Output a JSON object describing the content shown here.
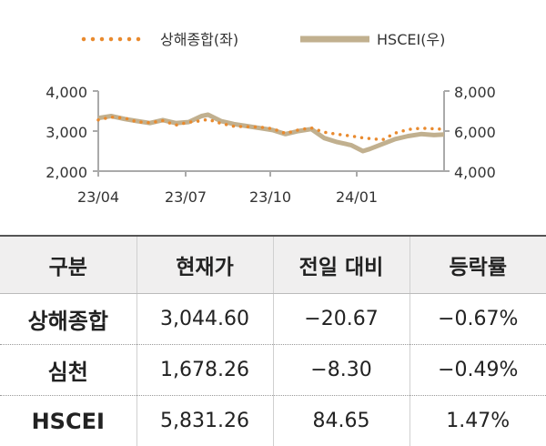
{
  "chart_data": {
    "type": "line",
    "title": "",
    "legend_position": "top",
    "x_ticks": [
      "23/04",
      "23/07",
      "23/10",
      "24/01"
    ],
    "left_axis": {
      "ticks": [
        "4,000",
        "3,000",
        "2,000"
      ],
      "range": [
        2000,
        4000
      ]
    },
    "right_axis": {
      "ticks": [
        "8,000",
        "6,000",
        "4,000"
      ],
      "range": [
        4000,
        8000
      ]
    },
    "series": [
      {
        "name": "상해종합(좌)",
        "axis": "left",
        "color": "#e98a2e",
        "style": "dotted",
        "x": [
          "2023-04-03",
          "2023-04-17",
          "2023-05-02",
          "2023-05-15",
          "2023-05-29",
          "2023-06-12",
          "2023-06-26",
          "2023-07-10",
          "2023-07-24",
          "2023-07-31",
          "2023-08-14",
          "2023-08-28",
          "2023-09-11",
          "2023-09-25",
          "2023-10-09",
          "2023-10-23",
          "2023-11-06",
          "2023-11-20",
          "2023-12-04",
          "2023-12-18",
          "2024-01-02",
          "2024-01-15",
          "2024-01-29",
          "2024-02-05",
          "2024-02-19",
          "2024-03-04",
          "2024-03-18",
          "2024-04-01",
          "2024-04-12"
        ],
        "values": [
          3280,
          3350,
          3320,
          3230,
          3210,
          3260,
          3150,
          3220,
          3260,
          3290,
          3190,
          3120,
          3110,
          3100,
          3060,
          2940,
          3030,
          3080,
          2970,
          2920,
          2880,
          2830,
          2800,
          2780,
          2950,
          3040,
          3070,
          3060,
          3044.6
        ]
      },
      {
        "name": "HSCEI(우)",
        "axis": "right",
        "color": "#c1b08f",
        "style": "solid",
        "x": [
          "2023-04-03",
          "2023-04-17",
          "2023-05-02",
          "2023-05-15",
          "2023-05-29",
          "2023-06-12",
          "2023-06-26",
          "2023-07-10",
          "2023-07-24",
          "2023-07-31",
          "2023-08-14",
          "2023-08-28",
          "2023-09-11",
          "2023-09-25",
          "2023-10-09",
          "2023-10-23",
          "2023-11-06",
          "2023-11-20",
          "2023-12-04",
          "2023-12-18",
          "2024-01-02",
          "2024-01-15",
          "2024-01-22",
          "2024-02-05",
          "2024-02-19",
          "2024-03-04",
          "2024-03-18",
          "2024-04-01",
          "2024-04-12"
        ],
        "values": [
          6650,
          6750,
          6600,
          6500,
          6400,
          6550,
          6400,
          6450,
          6750,
          6820,
          6500,
          6350,
          6250,
          6150,
          6050,
          5850,
          6000,
          6100,
          5650,
          5450,
          5300,
          5000,
          5100,
          5350,
          5600,
          5750,
          5850,
          5800,
          5831.26
        ]
      }
    ]
  },
  "table": {
    "headers": [
      "구분",
      "현재가",
      "전일 대비",
      "등락률"
    ],
    "rows": [
      {
        "name": "상해종합",
        "price": "3,044.60",
        "change": "−20.67",
        "rate": "−0.67%"
      },
      {
        "name": "심천",
        "price": "1,678.26",
        "change": "−8.30",
        "rate": "−0.49%"
      },
      {
        "name": "HSCEI",
        "price": "5,831.26",
        "change": "84.65",
        "rate": "1.47%"
      }
    ]
  }
}
